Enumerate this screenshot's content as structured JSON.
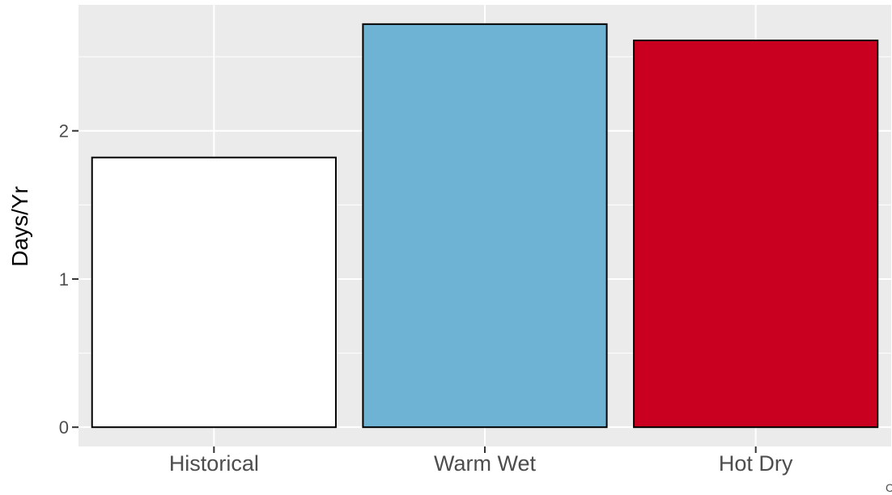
{
  "chart_data": {
    "type": "bar",
    "title": "",
    "xlabel": "",
    "ylabel": "Days/Yr",
    "categories": [
      "Historical",
      "Warm Wet",
      "Hot Dry"
    ],
    "values": [
      1.82,
      2.72,
      2.61
    ],
    "bar_colors": [
      "#FFFFFF",
      "#6EB2D4",
      "#CA0020"
    ],
    "bar_outline_color": "#000000",
    "ylim": [
      -0.13,
      2.85
    ],
    "yticks": [
      0,
      1,
      2
    ],
    "yminor": [
      0.5,
      1.5,
      2.5
    ],
    "grid": true,
    "panel_background": "#EBEBEB",
    "grid_color": "#FFFFFF",
    "legend": "none",
    "caption_fragment": "C"
  }
}
